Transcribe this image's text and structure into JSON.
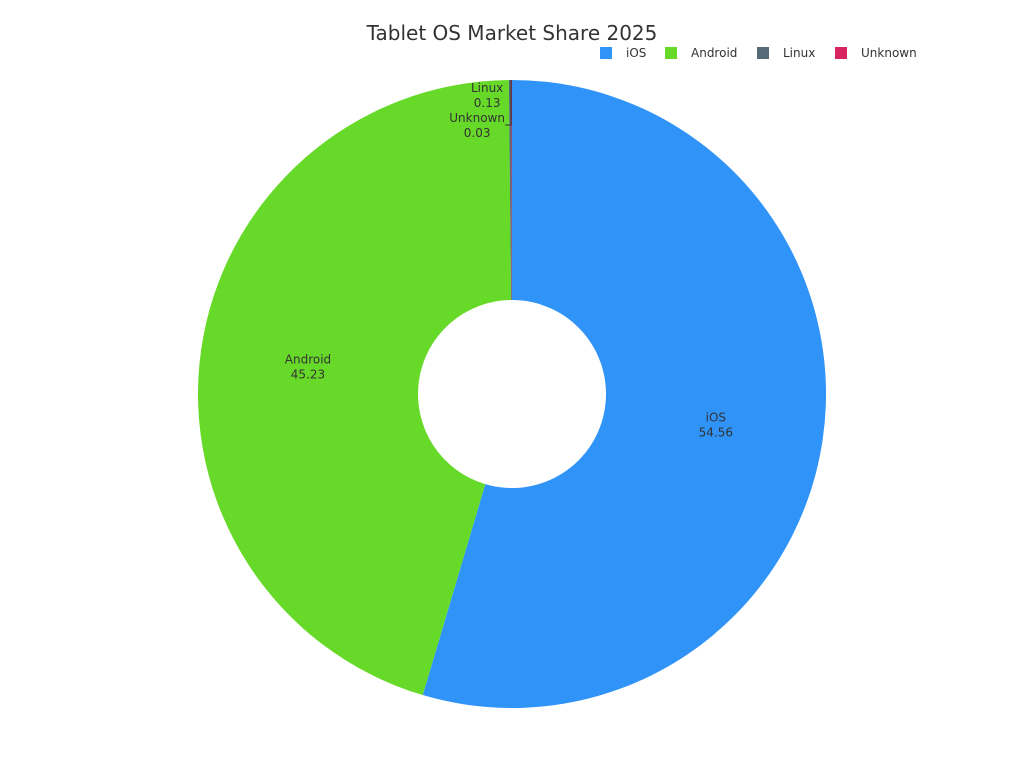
{
  "chart_data": {
    "type": "pie",
    "title": "Tablet OS Market Share 2025",
    "donut": true,
    "legend_position": "top-right",
    "categories": [
      "iOS",
      "Android",
      "Linux",
      "Unknown"
    ],
    "values": [
      54.56,
      45.23,
      0.13,
      0.03
    ],
    "value_labels": [
      "54.56",
      "45.23",
      "0.13",
      "0.03"
    ],
    "colors": [
      "#3093f8",
      "#67da29",
      "#556b75",
      "#d92462"
    ]
  }
}
